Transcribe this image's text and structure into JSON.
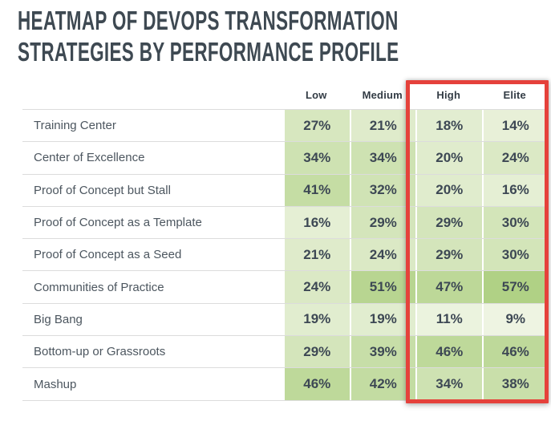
{
  "title": {
    "line1": "HEATMAP OF DEVOPS TRANSFORMATION",
    "line2": "STRATEGIES BY PERFORMANCE PROFILE"
  },
  "chart_data": {
    "type": "heatmap",
    "columns": [
      "Low",
      "Medium",
      "High",
      "Elite"
    ],
    "rows": [
      {
        "label": "Training Center",
        "values": [
          27,
          21,
          18,
          14
        ]
      },
      {
        "label": "Center of Excellence",
        "values": [
          34,
          34,
          20,
          24
        ]
      },
      {
        "label": "Proof of Concept but Stall",
        "values": [
          41,
          32,
          20,
          16
        ]
      },
      {
        "label": "Proof of Concept as a Template",
        "values": [
          16,
          29,
          29,
          30
        ]
      },
      {
        "label": "Proof of Concept as a Seed",
        "values": [
          21,
          24,
          29,
          30
        ]
      },
      {
        "label": "Communities of Practice",
        "values": [
          24,
          51,
          47,
          57
        ]
      },
      {
        "label": "Big Bang",
        "values": [
          19,
          19,
          11,
          9
        ]
      },
      {
        "label": "Bottom-up or Grassroots",
        "values": [
          29,
          39,
          46,
          46
        ]
      },
      {
        "label": "Mashup",
        "values": [
          46,
          42,
          34,
          38
        ]
      }
    ],
    "value_suffix": "%",
    "color_scale": {
      "min_value": 9,
      "max_value": 57,
      "min_color": "#eef4e2",
      "max_color": "#b0d185"
    },
    "highlight": {
      "columns": [
        "High",
        "Elite"
      ],
      "color": "#e5413b"
    },
    "title": "Heatmap of DevOps Transformation Strategies by Performance Profile",
    "legend_position": "none",
    "grid": "row-separators"
  }
}
